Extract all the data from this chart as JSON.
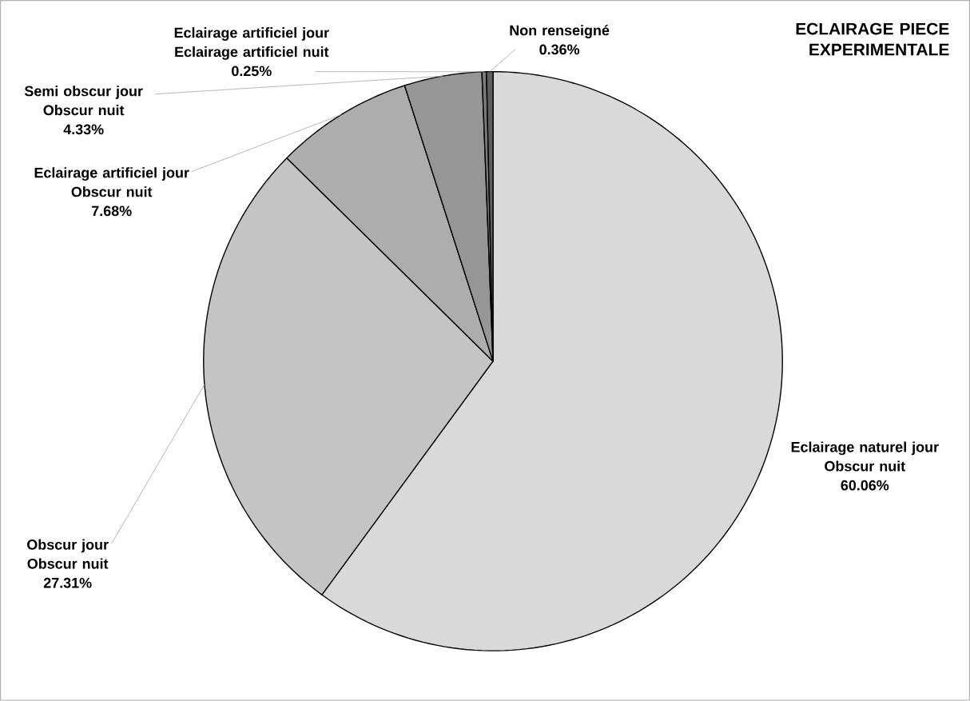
{
  "chart_data": {
    "type": "pie",
    "title": "ECLAIRAGE PIECE EXPERIMENTALE",
    "categories": [
      "Eclairage naturel jour Obscur nuit",
      "Obscur jour Obscur nuit",
      "Eclairage artificiel jour Obscur nuit",
      "Semi obscur jour Obscur nuit",
      "Eclairage artificiel jour Eclairage artificiel nuit",
      "Non renseigné"
    ],
    "values": [
      60.06,
      27.31,
      7.68,
      4.33,
      0.25,
      0.36
    ],
    "value_labels": [
      "60.06%",
      "27.31%",
      "7.68%",
      "4.33%",
      "0.25%",
      "0.36%"
    ],
    "colors": [
      "#d9d9d9",
      "#c4c4c4",
      "#adadad",
      "#969696",
      "#7a7a7a",
      "#5e5e5e"
    ]
  }
}
